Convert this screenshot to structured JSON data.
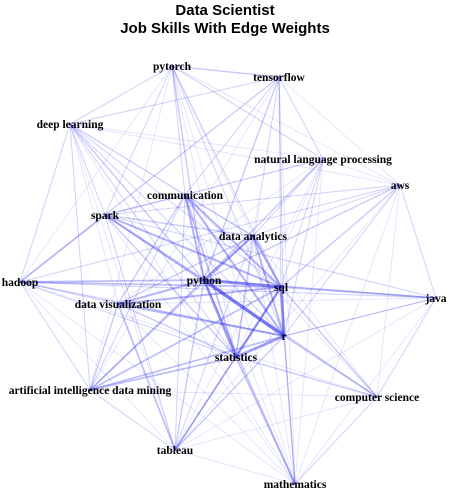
{
  "title": "Data Scientist",
  "subtitle": "Job Skills With Edge Weights",
  "colors": {
    "edge": "#3333ee",
    "label": "#000000",
    "background": "#ffffff"
  },
  "nodes": [
    {
      "id": "pytorch",
      "label": "pytorch"
    },
    {
      "id": "tensorflow",
      "label": "tensorflow"
    },
    {
      "id": "deep_learning",
      "label": "deep learning"
    },
    {
      "id": "nlp",
      "label": "natural language processing"
    },
    {
      "id": "aws",
      "label": "aws"
    },
    {
      "id": "communication",
      "label": "communication"
    },
    {
      "id": "spark",
      "label": "spark"
    },
    {
      "id": "data_analytics",
      "label": "data analytics"
    },
    {
      "id": "hadoop",
      "label": "hadoop"
    },
    {
      "id": "python",
      "label": "python"
    },
    {
      "id": "sql",
      "label": "sql"
    },
    {
      "id": "java",
      "label": "java"
    },
    {
      "id": "data_visualization",
      "label": "data visualization"
    },
    {
      "id": "r",
      "label": "r"
    },
    {
      "id": "statistics",
      "label": "statistics"
    },
    {
      "id": "ai_data_mining",
      "label": "artificial intelligence data mining"
    },
    {
      "id": "computer_science",
      "label": "computer science"
    },
    {
      "id": "tableau",
      "label": "tableau"
    },
    {
      "id": "mathematics",
      "label": "mathematics"
    }
  ],
  "edges": [
    [
      "python",
      "sql",
      8
    ],
    [
      "python",
      "r",
      9
    ],
    [
      "sql",
      "r",
      8
    ],
    [
      "python",
      "statistics",
      7
    ],
    [
      "r",
      "statistics",
      7
    ],
    [
      "sql",
      "statistics",
      6
    ],
    [
      "python",
      "data_analytics",
      6
    ],
    [
      "sql",
      "data_analytics",
      6
    ],
    [
      "r",
      "data_analytics",
      5
    ],
    [
      "python",
      "communication",
      5
    ],
    [
      "sql",
      "communication",
      5
    ],
    [
      "r",
      "communication",
      5
    ],
    [
      "statistics",
      "communication",
      4
    ],
    [
      "python",
      "spark",
      5
    ],
    [
      "sql",
      "spark",
      5
    ],
    [
      "spark",
      "hadoop",
      4
    ],
    [
      "python",
      "hadoop",
      4
    ],
    [
      "sql",
      "hadoop",
      4
    ],
    [
      "python",
      "data_visualization",
      5
    ],
    [
      "sql",
      "data_visualization",
      5
    ],
    [
      "r",
      "data_visualization",
      5
    ],
    [
      "data_visualization",
      "tableau",
      4
    ],
    [
      "sql",
      "tableau",
      4
    ],
    [
      "python",
      "tableau",
      3
    ],
    [
      "r",
      "tableau",
      3
    ],
    [
      "python",
      "ai_data_mining",
      4
    ],
    [
      "r",
      "ai_data_mining",
      4
    ],
    [
      "sql",
      "ai_data_mining",
      4
    ],
    [
      "statistics",
      "ai_data_mining",
      4
    ],
    [
      "python",
      "mathematics",
      3
    ],
    [
      "r",
      "mathematics",
      3
    ],
    [
      "statistics",
      "mathematics",
      4
    ],
    [
      "python",
      "computer_science",
      3
    ],
    [
      "sql",
      "computer_science",
      3
    ],
    [
      "r",
      "computer_science",
      3
    ],
    [
      "statistics",
      "computer_science",
      3
    ],
    [
      "python",
      "java",
      3
    ],
    [
      "sql",
      "java",
      4
    ],
    [
      "r",
      "java",
      2
    ],
    [
      "python",
      "aws",
      3
    ],
    [
      "sql",
      "aws",
      3
    ],
    [
      "spark",
      "aws",
      2
    ],
    [
      "python",
      "nlp",
      3
    ],
    [
      "r",
      "nlp",
      2
    ],
    [
      "sql",
      "nlp",
      2
    ],
    [
      "python",
      "deep_learning",
      3
    ],
    [
      "python",
      "tensorflow",
      3
    ],
    [
      "python",
      "pytorch",
      3
    ],
    [
      "tensorflow",
      "pytorch",
      3
    ],
    [
      "deep_learning",
      "tensorflow",
      2
    ],
    [
      "deep_learning",
      "pytorch",
      2
    ],
    [
      "spark",
      "communication",
      3
    ],
    [
      "spark",
      "data_analytics",
      3
    ],
    [
      "spark",
      "r",
      3
    ],
    [
      "spark",
      "statistics",
      3
    ],
    [
      "hadoop",
      "r",
      3
    ],
    [
      "hadoop",
      "data_visualization",
      2
    ],
    [
      "hadoop",
      "statistics",
      2
    ],
    [
      "communication",
      "data_analytics",
      3
    ],
    [
      "communication",
      "data_visualization",
      3
    ],
    [
      "communication",
      "tableau",
      2
    ],
    [
      "data_analytics",
      "statistics",
      3
    ],
    [
      "data_analytics",
      "data_visualization",
      3
    ],
    [
      "data_analytics",
      "tableau",
      2
    ],
    [
      "statistics",
      "data_visualization",
      3
    ],
    [
      "statistics",
      "tableau",
      3
    ],
    [
      "ai_data_mining",
      "data_visualization",
      3
    ],
    [
      "ai_data_mining",
      "tableau",
      2
    ],
    [
      "ai_data_mining",
      "hadoop",
      2
    ],
    [
      "computer_science",
      "mathematics",
      2
    ],
    [
      "java",
      "computer_science",
      2
    ],
    [
      "java",
      "aws",
      2
    ],
    [
      "java",
      "r",
      2
    ],
    [
      "tensorflow",
      "nlp",
      2
    ],
    [
      "pytorch",
      "nlp",
      2
    ],
    [
      "pytorch",
      "communication",
      2
    ],
    [
      "tensorflow",
      "communication",
      2
    ],
    [
      "deep_learning",
      "spark",
      2
    ],
    [
      "deep_learning",
      "hadoop",
      2
    ],
    [
      "deep_learning",
      "communication",
      2
    ],
    [
      "pytorch",
      "r",
      2
    ],
    [
      "tensorflow",
      "r",
      2
    ],
    [
      "pytorch",
      "sql",
      2
    ],
    [
      "tensorflow",
      "sql",
      2
    ],
    [
      "nlp",
      "aws",
      1
    ],
    [
      "nlp",
      "spark",
      1
    ],
    [
      "nlp",
      "communication",
      2
    ],
    [
      "nlp",
      "data_analytics",
      2
    ],
    [
      "aws",
      "hadoop",
      2
    ],
    [
      "aws",
      "data_analytics",
      2
    ],
    [
      "aws",
      "r",
      2
    ],
    [
      "mathematics",
      "tableau",
      1
    ],
    [
      "mathematics",
      "data_visualization",
      1
    ],
    [
      "mathematics",
      "communication",
      1
    ],
    [
      "mathematics",
      "sql",
      2
    ],
    [
      "computer_science",
      "tableau",
      1
    ],
    [
      "computer_science",
      "ai_data_mining",
      1
    ],
    [
      "computer_science",
      "data_analytics",
      1
    ],
    [
      "java",
      "hadoop",
      2
    ],
    [
      "java",
      "spark",
      2
    ],
    [
      "java",
      "data_visualization",
      1
    ],
    [
      "tableau",
      "hadoop",
      1
    ],
    [
      "tableau",
      "spark",
      1
    ],
    [
      "deep_learning",
      "ai_data_mining",
      2
    ],
    [
      "deep_learning",
      "r",
      2
    ],
    [
      "pytorch",
      "hadoop",
      1
    ],
    [
      "tensorflow",
      "hadoop",
      1
    ],
    [
      "pytorch",
      "spark",
      2
    ],
    [
      "tensorflow",
      "spark",
      2
    ],
    [
      "deep_learning",
      "data_visualization",
      1
    ],
    [
      "deep_learning",
      "statistics",
      2
    ],
    [
      "deep_learning",
      "sql",
      2
    ],
    [
      "aws",
      "computer_science",
      1
    ],
    [
      "aws",
      "mathematics",
      1
    ],
    [
      "nlp",
      "statistics",
      1
    ],
    [
      "nlp",
      "mathematics",
      1
    ],
    [
      "pytorch",
      "mathematics",
      1
    ],
    [
      "tensorflow",
      "mathematics",
      1
    ],
    [
      "pytorch",
      "ai_data_mining",
      1
    ],
    [
      "tensorflow",
      "ai_data_mining",
      1
    ],
    [
      "hadoop",
      "mathematics",
      1
    ],
    [
      "hadoop",
      "computer_science",
      1
    ],
    [
      "spark",
      "mathematics",
      1
    ],
    [
      "spark",
      "tableau",
      1
    ],
    [
      "deep_learning",
      "tableau",
      1
    ],
    [
      "deep_learning",
      "mathematics",
      1
    ],
    [
      "java",
      "tableau",
      1
    ],
    [
      "java",
      "mathematics",
      1
    ],
    [
      "communication",
      "ai_data_mining",
      2
    ],
    [
      "communication",
      "computer_science",
      1
    ],
    [
      "data_analytics",
      "ai_data_mining",
      2
    ],
    [
      "data_analytics",
      "mathematics",
      1
    ],
    [
      "nlp",
      "data_visualization",
      1
    ],
    [
      "nlp",
      "tableau",
      1
    ],
    [
      "aws",
      "tableau",
      1
    ],
    [
      "pytorch",
      "data_analytics",
      1
    ],
    [
      "tensorflow",
      "data_analytics",
      1
    ],
    [
      "pytorch",
      "statistics",
      1
    ],
    [
      "tensorflow",
      "statistics",
      1
    ],
    [
      "deep_learning",
      "data_analytics",
      1
    ],
    [
      "deep_learning",
      "nlp",
      1
    ],
    [
      "deep_learning",
      "aws",
      1
    ],
    [
      "pytorch",
      "aws",
      1
    ],
    [
      "tensorflow",
      "aws",
      1
    ]
  ]
}
